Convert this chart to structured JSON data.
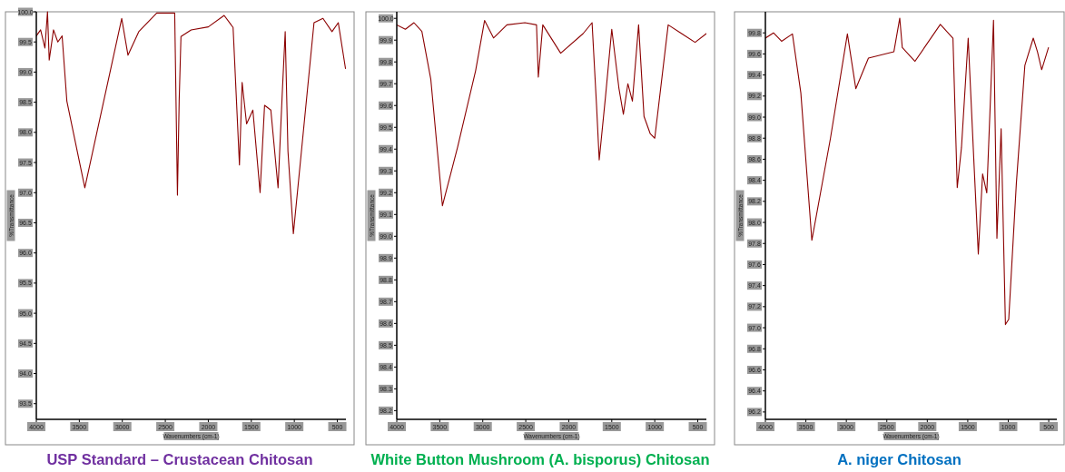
{
  "chart_data": [
    {
      "type": "line",
      "title": "USP Standard – Crustacean Chitosan",
      "xlabel": "Wavenumbers (cm-1)",
      "ylabel": "%Transmittance",
      "xlim": [
        4000,
        400
      ],
      "ylim": [
        93.24,
        100.0
      ],
      "xticks": [
        4000,
        3500,
        3000,
        2500,
        2000,
        1500,
        1000,
        500
      ],
      "yticks": [
        {
          "value": 93.5,
          "label": "93.5"
        },
        {
          "value": 94,
          "label": "94.0"
        },
        {
          "value": 94.5,
          "label": "94.5"
        },
        {
          "value": 95,
          "label": "95.0"
        },
        {
          "value": 95.5,
          "label": "95.5"
        },
        {
          "value": 96,
          "label": "96.0"
        },
        {
          "value": 96.5,
          "label": "96.5"
        },
        {
          "value": 97,
          "label": "97.0"
        },
        {
          "value": 97.5,
          "label": "97.5"
        },
        {
          "value": 98,
          "label": "98.0"
        },
        {
          "value": 98.5,
          "label": "98.5"
        },
        {
          "value": 99,
          "label": "99.0"
        },
        {
          "value": 99.5,
          "label": "99.5"
        },
        {
          "value": 100,
          "label": "100.0"
        }
      ],
      "series": [
        {
          "color": "#8b0000",
          "x": [
            4000,
            3950,
            3900,
            3870,
            3850,
            3800,
            3750,
            3700,
            3645,
            3436,
            3007,
            2934,
            2809,
            2600,
            2391,
            2359,
            2339,
            2318,
            2200,
            2000,
            1816,
            1712,
            1638,
            1607,
            1555,
            1482,
            1398,
            1346,
            1273,
            1189,
            1137,
            1106,
            1074,
            1011,
            928,
            771,
            667,
            562,
            489,
            405
          ],
          "values": [
            99.6,
            99.7,
            99.4,
            100.0,
            99.2,
            99.7,
            99.5,
            99.6,
            98.52,
            97.08,
            99.89,
            99.28,
            99.67,
            99.98,
            99.98,
            96.96,
            98.52,
            99.59,
            99.7,
            99.75,
            99.94,
            99.74,
            97.46,
            98.83,
            98.14,
            98.37,
            97.0,
            98.45,
            98.37,
            97.08,
            98.75,
            99.67,
            97.69,
            96.32,
            97.53,
            99.82,
            99.89,
            99.67,
            99.82,
            99.06
          ]
        }
      ]
    },
    {
      "type": "line",
      "title": "White Button Mushroom (A. bisporus) Chitosan",
      "xlabel": "Wavenumbers (cm-1)",
      "ylabel": "%Transmittance",
      "xlim": [
        4000,
        400
      ],
      "ylim": [
        98.16,
        100.03
      ],
      "xticks": [
        4000,
        3500,
        3000,
        2500,
        2000,
        1500,
        1000,
        500
      ],
      "yticks": [
        98.2,
        98.3,
        98.4,
        98.5,
        98.6,
        98.7,
        98.8,
        98.9,
        {
          "value": 99,
          "label": "99.0"
        },
        99.1,
        99.2,
        99.3,
        99.4,
        99.5,
        99.6,
        99.7,
        99.8,
        99.9,
        {
          "value": 100,
          "label": "100.0"
        }
      ],
      "series": [
        {
          "color": "#8b0000",
          "x": [
            4000,
            3900,
            3800,
            3708,
            3604,
            3469,
            3292,
            3083,
            2979,
            2875,
            2719,
            2510,
            2375,
            2354,
            2302,
            2094,
            1833,
            1729,
            1677,
            1646,
            1573,
            1500,
            1417,
            1365,
            1313,
            1260,
            1188,
            1125,
            1052,
            1000,
            844,
            688,
            531,
            400
          ],
          "values": [
            99.97,
            99.95,
            99.98,
            99.94,
            99.72,
            99.14,
            99.41,
            99.76,
            99.99,
            99.91,
            99.97,
            99.98,
            99.97,
            99.73,
            99.97,
            99.84,
            99.93,
            99.98,
            99.6,
            99.35,
            99.64,
            99.95,
            99.68,
            99.56,
            99.7,
            99.62,
            99.97,
            99.55,
            99.47,
            99.45,
            99.97,
            99.93,
            99.89,
            99.93
          ]
        }
      ]
    },
    {
      "type": "line",
      "title": "A. niger Chitosan",
      "xlabel": "Wavenumbers (cm-1)",
      "ylabel": "%Transmittance",
      "xlim": [
        4000,
        400
      ],
      "ylim": [
        96.13,
        100.0
      ],
      "xticks": [
        4000,
        3500,
        3000,
        2500,
        2000,
        1500,
        1000,
        500
      ],
      "yticks": [
        96.2,
        96.4,
        96.6,
        96.8,
        {
          "value": 97,
          "label": "97.0"
        },
        97.2,
        97.4,
        97.6,
        97.8,
        {
          "value": 98,
          "label": "98.0"
        },
        98.2,
        98.4,
        98.6,
        98.8,
        {
          "value": 99,
          "label": "99.0"
        },
        99.2,
        99.4,
        99.6,
        99.8
      ],
      "series": [
        {
          "color": "#8b0000",
          "x": [
            4000,
            3900,
            3800,
            3666,
            3562,
            3426,
            3196,
            2987,
            2883,
            2727,
            2413,
            2340,
            2309,
            2152,
            1839,
            1683,
            1630,
            1578,
            1495,
            1422,
            1370,
            1317,
            1265,
            1182,
            1140,
            1088,
            1035,
            994,
            900,
            795,
            691,
            639,
            587,
            503
          ],
          "values": [
            99.75,
            99.8,
            99.72,
            99.79,
            99.23,
            97.83,
            98.8,
            99.79,
            99.27,
            99.56,
            99.62,
            99.94,
            99.66,
            99.53,
            99.88,
            99.75,
            98.33,
            98.71,
            99.75,
            98.54,
            97.7,
            98.46,
            98.28,
            99.92,
            97.85,
            98.89,
            97.03,
            97.08,
            98.37,
            99.49,
            99.75,
            99.62,
            99.45,
            99.66
          ]
        }
      ]
    }
  ]
}
